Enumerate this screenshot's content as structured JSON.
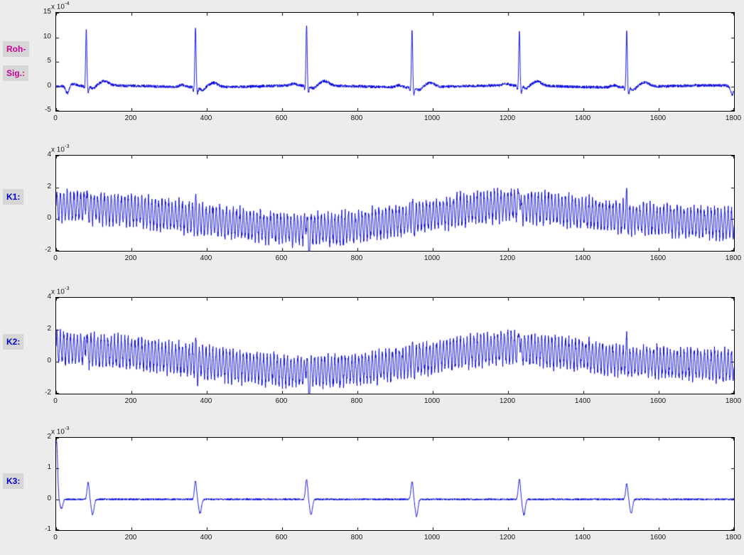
{
  "figure": {
    "bg_color": "#ececec",
    "plot_bg": "#ffffff",
    "axis_color": "#000000",
    "tick_label_color": "#1a1a1a"
  },
  "side_labels": [
    {
      "name": "roh-sig",
      "lines": [
        "Roh-",
        "Sig.:"
      ],
      "color": "#cc0099"
    },
    {
      "name": "k1",
      "lines": [
        "K1:"
      ],
      "color": "#0000cc"
    },
    {
      "name": "k2",
      "lines": [
        "K2:"
      ],
      "color": "#0000cc"
    },
    {
      "name": "k3",
      "lines": [
        "K3:"
      ],
      "color": "#0000cc"
    }
  ],
  "chart_data": [
    {
      "type": "line",
      "name": "Roh-Sig",
      "exp_base": "x 10",
      "exp_sup": "-4",
      "xlim": [
        0,
        1800
      ],
      "ylim": [
        -5,
        15
      ],
      "xticks": [
        0,
        200,
        400,
        600,
        800,
        1000,
        1200,
        1400,
        1600,
        1800
      ],
      "yticks": [
        -5,
        0,
        5,
        10,
        15
      ],
      "line_color": "#0000dd",
      "signal": {
        "kind": "ecg_raw",
        "units_exponent": -4,
        "noise_amplitude": 0.3,
        "r_peak_positions": [
          80,
          370,
          665,
          945,
          1230,
          1515
        ],
        "r_peak_amplitudes": [
          11.5,
          12.3,
          12.4,
          11.7,
          11.0,
          11.6
        ],
        "t_wave_amplitude": 0.9,
        "features": [
          {
            "pos": 30,
            "amp": -1.5,
            "width": 6
          },
          {
            "pos": 1795,
            "amp": -1.8,
            "width": 6
          }
        ]
      }
    },
    {
      "type": "line",
      "name": "K1",
      "exp_base": "x 10",
      "exp_sup": "-3",
      "xlim": [
        0,
        1800
      ],
      "ylim": [
        -2,
        4
      ],
      "xticks": [
        0,
        200,
        400,
        600,
        800,
        1000,
        1200,
        1400,
        1600,
        1800
      ],
      "yticks": [
        -2,
        0,
        2,
        4
      ],
      "line_color": "#0000dd",
      "signal": {
        "kind": "noisy_oscillation",
        "units_exponent": -3,
        "osc_period": 9,
        "osc_amplitude": 0.85,
        "noise_amplitude": 0.15,
        "wander_points": [
          [
            0,
            0.9
          ],
          [
            200,
            0.55
          ],
          [
            400,
            -0.05
          ],
          [
            600,
            -0.6
          ],
          [
            750,
            -0.6
          ],
          [
            900,
            -0.15
          ],
          [
            1050,
            0.5
          ],
          [
            1200,
            0.9
          ],
          [
            1350,
            0.55
          ],
          [
            1500,
            0.1
          ],
          [
            1650,
            -0.1
          ],
          [
            1800,
            -0.3
          ]
        ],
        "spike_positions": [
          80,
          370,
          665,
          945,
          1230,
          1515
        ],
        "spike_up": [
          1.0,
          0.9,
          0.9,
          0.9,
          1.35,
          1.0
        ],
        "spike_down": [
          0.3,
          0.3,
          1.7,
          0.4,
          0.5,
          0.4
        ]
      }
    },
    {
      "type": "line",
      "name": "K2",
      "exp_base": "x 10",
      "exp_sup": "-3",
      "xlim": [
        0,
        1800
      ],
      "ylim": [
        -2,
        4
      ],
      "xticks": [
        0,
        200,
        400,
        600,
        800,
        1000,
        1200,
        1400,
        1600,
        1800
      ],
      "yticks": [
        -2,
        0,
        2,
        4
      ],
      "line_color": "#0000dd",
      "signal": {
        "kind": "noisy_oscillation",
        "units_exponent": -3,
        "osc_period": 9,
        "osc_amplitude": 0.85,
        "noise_amplitude": 0.15,
        "wander_points": [
          [
            0,
            0.9
          ],
          [
            200,
            0.55
          ],
          [
            400,
            -0.05
          ],
          [
            600,
            -0.6
          ],
          [
            750,
            -0.6
          ],
          [
            900,
            -0.15
          ],
          [
            1050,
            0.5
          ],
          [
            1200,
            0.9
          ],
          [
            1350,
            0.55
          ],
          [
            1500,
            0.1
          ],
          [
            1650,
            -0.1
          ],
          [
            1800,
            -0.3
          ]
        ],
        "spike_positions": [
          80,
          370,
          665,
          945,
          1230,
          1515
        ],
        "spike_up": [
          1.0,
          0.85,
          0.9,
          0.9,
          1.4,
          0.95
        ],
        "spike_down": [
          0.3,
          0.5,
          1.5,
          0.4,
          0.5,
          0.4
        ]
      }
    },
    {
      "type": "line",
      "name": "K3",
      "exp_base": "x 10",
      "exp_sup": "-3",
      "xlim": [
        0,
        1800
      ],
      "ylim": [
        -1,
        2
      ],
      "xticks": [
        0,
        200,
        400,
        600,
        800,
        1000,
        1200,
        1400,
        1600,
        1800
      ],
      "yticks": [
        -1,
        0,
        1,
        2
      ],
      "line_color": "#0000dd",
      "signal": {
        "kind": "biphasic_spikes",
        "units_exponent": -3,
        "noise_amplitude": 0.03,
        "initial_amplitude": 1.9,
        "spike_positions": [
          85,
          370,
          665,
          945,
          1230,
          1515
        ],
        "spike_up": [
          0.55,
          0.6,
          0.65,
          0.6,
          0.65,
          0.5
        ],
        "spike_down": [
          0.5,
          0.45,
          0.5,
          0.55,
          0.5,
          0.45
        ]
      }
    }
  ]
}
